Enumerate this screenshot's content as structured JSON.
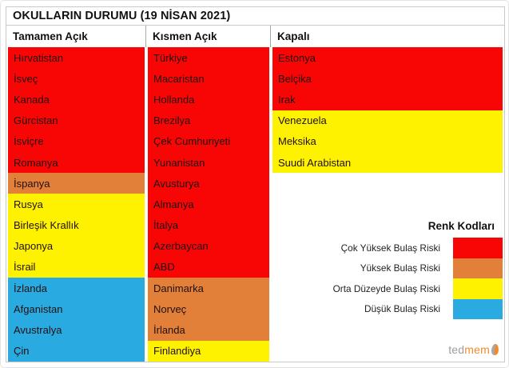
{
  "colors": {
    "very_high": "#f80606",
    "high": "#e2803a",
    "medium": "#fff200",
    "low": "#29abe2"
  },
  "logo": {
    "prefix": "ted",
    "suffix": "mem"
  },
  "chart_data": {
    "type": "table",
    "title": "OKULLARIN DURUMU (19 NİSAN 2021)",
    "columns": [
      {
        "header": "Tamamen Açık",
        "cells": [
          {
            "country": "Hırvatistan",
            "risk": "very_high"
          },
          {
            "country": "İsveç",
            "risk": "very_high"
          },
          {
            "country": "Kanada",
            "risk": "very_high"
          },
          {
            "country": "Gürcistan",
            "risk": "very_high"
          },
          {
            "country": "İsviçre",
            "risk": "very_high"
          },
          {
            "country": "Romanya",
            "risk": "very_high"
          },
          {
            "country": "İspanya",
            "risk": "high"
          },
          {
            "country": "Rusya",
            "risk": "medium"
          },
          {
            "country": "Birleşik Krallık",
            "risk": "medium"
          },
          {
            "country": "Japonya",
            "risk": "medium"
          },
          {
            "country": "İsrail",
            "risk": "medium"
          },
          {
            "country": "İzlanda",
            "risk": "low"
          },
          {
            "country": "Afganistan",
            "risk": "low"
          },
          {
            "country": "Avustralya",
            "risk": "low"
          },
          {
            "country": "Çin",
            "risk": "low"
          }
        ]
      },
      {
        "header": "Kısmen Açık",
        "cells": [
          {
            "country": "Türkiye",
            "risk": "very_high"
          },
          {
            "country": "Macaristan",
            "risk": "very_high"
          },
          {
            "country": "Hollanda",
            "risk": "very_high"
          },
          {
            "country": "Brezilya",
            "risk": "very_high"
          },
          {
            "country": "Çek Cumhuriyeti",
            "risk": "very_high"
          },
          {
            "country": "Yunanistan",
            "risk": "very_high"
          },
          {
            "country": "Avusturya",
            "risk": "very_high"
          },
          {
            "country": "Almanya",
            "risk": "very_high"
          },
          {
            "country": "İtalya",
            "risk": "very_high"
          },
          {
            "country": "Azerbaycan",
            "risk": "very_high"
          },
          {
            "country": "ABD",
            "risk": "very_high"
          },
          {
            "country": "Danimarka",
            "risk": "high"
          },
          {
            "country": "Norveç",
            "risk": "high"
          },
          {
            "country": "İrlanda",
            "risk": "high"
          },
          {
            "country": "Finlandiya",
            "risk": "medium"
          }
        ]
      },
      {
        "header": "Kapalı",
        "cells": [
          {
            "country": "Estonya",
            "risk": "very_high"
          },
          {
            "country": "Belçika",
            "risk": "very_high"
          },
          {
            "country": "Irak",
            "risk": "very_high"
          },
          {
            "country": "Venezuela",
            "risk": "medium"
          },
          {
            "country": "Meksika",
            "risk": "medium"
          },
          {
            "country": "Suudi Arabistan",
            "risk": "medium"
          }
        ]
      }
    ],
    "legend": {
      "title": "Renk Kodları",
      "position": "right-middle",
      "items": [
        {
          "label": "Çok Yüksek Bulaş Riski",
          "risk": "very_high",
          "color": "#f80606"
        },
        {
          "label": "Yüksek Bulaş Riski",
          "risk": "high",
          "color": "#e2803a"
        },
        {
          "label": "Orta Düzeyde Bulaş Riski",
          "risk": "medium",
          "color": "#fff200"
        },
        {
          "label": "Düşük Bulaş Riski",
          "risk": "low",
          "color": "#29abe2"
        }
      ]
    }
  }
}
